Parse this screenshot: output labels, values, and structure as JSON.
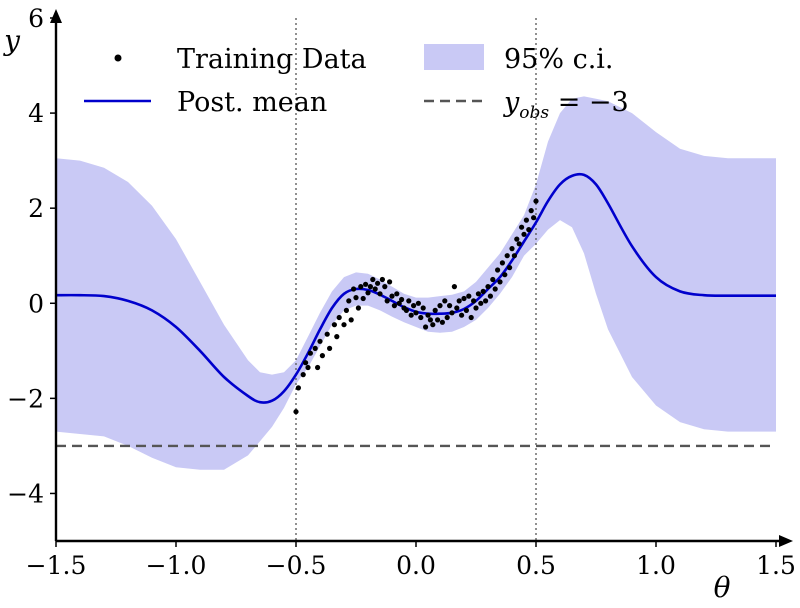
{
  "chart_data": {
    "type": "line",
    "xlabel": "θ",
    "ylabel": "y",
    "xlim": [
      -1.5,
      1.5
    ],
    "ylim": [
      -5,
      6
    ],
    "xticks": [
      -1.5,
      -1.0,
      -0.5,
      0.0,
      0.5,
      1.0,
      1.5
    ],
    "xtick_labels": [
      "−1.5",
      "−1.0",
      "−0.5",
      "0.0",
      "0.5",
      "1.0",
      "1.5"
    ],
    "yticks": [
      -4,
      -2,
      0,
      2,
      4,
      6
    ],
    "ytick_labels": [
      "−4",
      "−2",
      "0",
      "2",
      "4",
      "6"
    ],
    "grid": false,
    "legend_position": "top",
    "legend": {
      "training": "Training Data",
      "ci": "95% c.i.",
      "mean": "Post. mean",
      "obs_main": "y",
      "obs_sub": "obs",
      "obs_rest": " = −3"
    },
    "colors": {
      "mean": "#0000cc",
      "band": "#c9c9f5",
      "obs_line": "#555555",
      "points": "#000000"
    },
    "reference_lines": {
      "vertical_x": [
        -0.5,
        0.5
      ],
      "horizontal_y": -3
    },
    "series": [
      {
        "name": "Post. mean",
        "x": [
          -1.5,
          -1.4,
          -1.3,
          -1.2,
          -1.1,
          -1.0,
          -0.9,
          -0.8,
          -0.7,
          -0.65,
          -0.6,
          -0.55,
          -0.5,
          -0.45,
          -0.4,
          -0.35,
          -0.3,
          -0.25,
          -0.2,
          -0.15,
          -0.1,
          -0.05,
          0.0,
          0.05,
          0.1,
          0.15,
          0.2,
          0.25,
          0.3,
          0.35,
          0.4,
          0.45,
          0.5,
          0.55,
          0.6,
          0.65,
          0.7,
          0.75,
          0.8,
          0.9,
          1.0,
          1.1,
          1.2,
          1.3,
          1.4,
          1.5
        ],
        "y": [
          0.17,
          0.17,
          0.15,
          0.05,
          -0.15,
          -0.5,
          -1.0,
          -1.55,
          -1.95,
          -2.08,
          -2.05,
          -1.85,
          -1.5,
          -1.05,
          -0.55,
          -0.1,
          0.2,
          0.3,
          0.28,
          0.18,
          0.05,
          -0.08,
          -0.18,
          -0.22,
          -0.22,
          -0.2,
          -0.12,
          0.05,
          0.3,
          0.55,
          0.9,
          1.3,
          1.7,
          2.15,
          2.5,
          2.68,
          2.7,
          2.5,
          2.1,
          1.2,
          0.55,
          0.25,
          0.17,
          0.16,
          0.16,
          0.16
        ]
      },
      {
        "name": "95% c.i.",
        "x": [
          -1.5,
          -1.4,
          -1.3,
          -1.2,
          -1.1,
          -1.0,
          -0.9,
          -0.8,
          -0.7,
          -0.65,
          -0.6,
          -0.55,
          -0.5,
          -0.45,
          -0.4,
          -0.35,
          -0.3,
          -0.25,
          -0.2,
          -0.15,
          -0.1,
          -0.05,
          0.0,
          0.05,
          0.1,
          0.15,
          0.2,
          0.25,
          0.3,
          0.35,
          0.4,
          0.45,
          0.5,
          0.55,
          0.6,
          0.65,
          0.7,
          0.75,
          0.8,
          0.9,
          1.0,
          1.1,
          1.2,
          1.3,
          1.4,
          1.5
        ],
        "upper": [
          3.05,
          3.0,
          2.85,
          2.55,
          2.05,
          1.35,
          0.45,
          -0.45,
          -1.2,
          -1.45,
          -1.5,
          -1.45,
          -1.2,
          -0.7,
          -0.2,
          0.25,
          0.55,
          0.65,
          0.62,
          0.5,
          0.35,
          0.2,
          0.12,
          0.12,
          0.15,
          0.18,
          0.25,
          0.45,
          0.75,
          1.05,
          1.45,
          1.85,
          2.5,
          3.4,
          4.0,
          4.3,
          4.35,
          4.3,
          4.25,
          4.0,
          3.6,
          3.25,
          3.1,
          3.05,
          3.05,
          3.05
        ],
        "lower": [
          -2.7,
          -2.75,
          -2.8,
          -3.0,
          -3.25,
          -3.45,
          -3.5,
          -3.5,
          -3.2,
          -2.9,
          -2.6,
          -2.2,
          -1.7,
          -1.35,
          -0.9,
          -0.45,
          -0.15,
          -0.05,
          -0.05,
          -0.15,
          -0.28,
          -0.4,
          -0.5,
          -0.6,
          -0.62,
          -0.6,
          -0.5,
          -0.35,
          -0.1,
          0.2,
          0.55,
          1.0,
          1.25,
          1.55,
          1.75,
          1.6,
          1.05,
          0.2,
          -0.55,
          -1.55,
          -2.15,
          -2.5,
          -2.65,
          -2.7,
          -2.7,
          -2.7
        ]
      },
      {
        "name": "Training Data",
        "points": [
          [
            -0.5,
            -2.28
          ],
          [
            -0.49,
            -1.78
          ],
          [
            -0.47,
            -1.5
          ],
          [
            -0.46,
            -1.25
          ],
          [
            -0.45,
            -1.35
          ],
          [
            -0.44,
            -1.05
          ],
          [
            -0.42,
            -0.95
          ],
          [
            -0.41,
            -1.35
          ],
          [
            -0.4,
            -0.8
          ],
          [
            -0.39,
            -1.1
          ],
          [
            -0.37,
            -0.65
          ],
          [
            -0.36,
            -0.95
          ],
          [
            -0.34,
            -0.45
          ],
          [
            -0.33,
            -0.7
          ],
          [
            -0.32,
            -0.3
          ],
          [
            -0.3,
            -0.45
          ],
          [
            -0.29,
            -0.15
          ],
          [
            -0.28,
            0.05
          ],
          [
            -0.27,
            -0.35
          ],
          [
            -0.26,
            0.3
          ],
          [
            -0.25,
            0.12
          ],
          [
            -0.24,
            -0.1
          ],
          [
            -0.23,
            0.35
          ],
          [
            -0.22,
            0.1
          ],
          [
            -0.21,
            0.4
          ],
          [
            -0.2,
            0.22
          ],
          [
            -0.19,
            0.35
          ],
          [
            -0.18,
            0.5
          ],
          [
            -0.17,
            0.3
          ],
          [
            -0.16,
            0.42
          ],
          [
            -0.15,
            0.2
          ],
          [
            -0.14,
            0.5
          ],
          [
            -0.13,
            0.35
          ],
          [
            -0.12,
            0.05
          ],
          [
            -0.11,
            0.45
          ],
          [
            -0.1,
            0.15
          ],
          [
            -0.09,
            -0.05
          ],
          [
            -0.08,
            0.2
          ],
          [
            -0.07,
            0.0
          ],
          [
            -0.06,
            0.08
          ],
          [
            -0.05,
            -0.1
          ],
          [
            -0.04,
            -0.15
          ],
          [
            -0.03,
            0.05
          ],
          [
            -0.02,
            -0.25
          ],
          [
            -0.01,
            -0.05
          ],
          [
            0.0,
            -0.2
          ],
          [
            0.01,
            0.0
          ],
          [
            0.02,
            -0.3
          ],
          [
            0.03,
            -0.1
          ],
          [
            0.04,
            -0.5
          ],
          [
            0.05,
            -0.25
          ],
          [
            0.06,
            -0.35
          ],
          [
            0.07,
            -0.45
          ],
          [
            0.08,
            -0.15
          ],
          [
            0.09,
            -0.35
          ],
          [
            0.1,
            -0.05
          ],
          [
            0.11,
            -0.4
          ],
          [
            0.12,
            0.05
          ],
          [
            0.13,
            -0.3
          ],
          [
            0.14,
            -0.05
          ],
          [
            0.15,
            -0.2
          ],
          [
            0.16,
            0.35
          ],
          [
            0.17,
            -0.1
          ],
          [
            0.18,
            0.05
          ],
          [
            0.19,
            -0.25
          ],
          [
            0.2,
            0.1
          ],
          [
            0.21,
            -0.15
          ],
          [
            0.22,
            0.15
          ],
          [
            0.23,
            -0.3
          ],
          [
            0.24,
            0.05
          ],
          [
            0.25,
            -0.1
          ],
          [
            0.26,
            0.2
          ],
          [
            0.27,
            0.0
          ],
          [
            0.28,
            0.25
          ],
          [
            0.29,
            0.05
          ],
          [
            0.3,
            0.35
          ],
          [
            0.31,
            0.15
          ],
          [
            0.32,
            0.5
          ],
          [
            0.33,
            0.3
          ],
          [
            0.34,
            0.7
          ],
          [
            0.35,
            0.45
          ],
          [
            0.36,
            0.85
          ],
          [
            0.37,
            0.6
          ],
          [
            0.38,
            1.0
          ],
          [
            0.39,
            0.75
          ],
          [
            0.4,
            1.15
          ],
          [
            0.41,
            1.0
          ],
          [
            0.42,
            1.35
          ],
          [
            0.43,
            1.25
          ],
          [
            0.44,
            1.6
          ],
          [
            0.45,
            1.45
          ],
          [
            0.46,
            1.75
          ],
          [
            0.47,
            1.55
          ],
          [
            0.48,
            1.95
          ],
          [
            0.49,
            1.8
          ],
          [
            0.5,
            2.15
          ]
        ]
      }
    ]
  }
}
